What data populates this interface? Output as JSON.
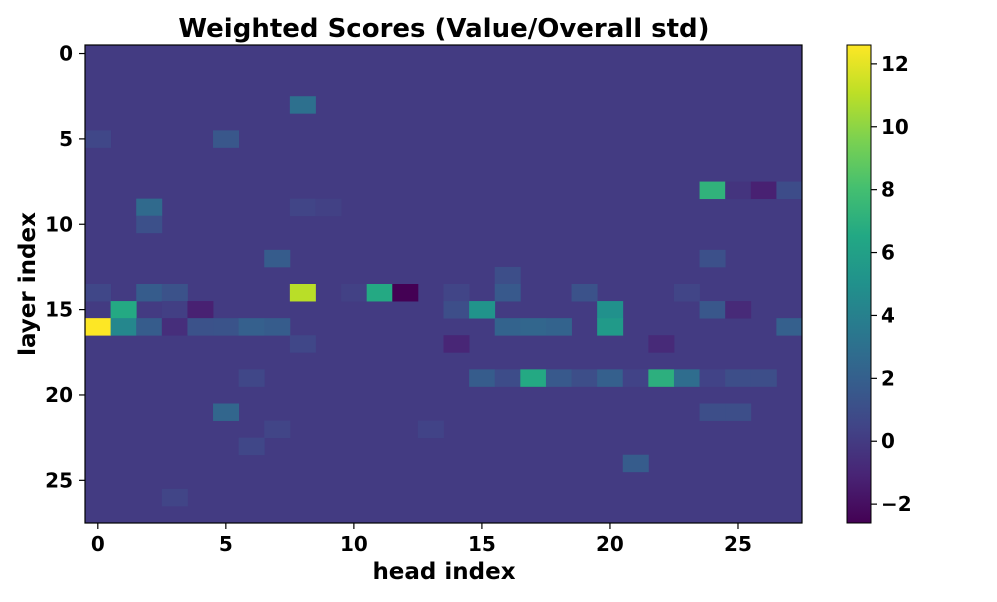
{
  "chart_data": {
    "type": "heatmap",
    "title": "Weighted Scores (Value/Overall std)",
    "xlabel": "head index",
    "ylabel": "layer index",
    "rows": 28,
    "cols": 28,
    "x_ticks": [
      0,
      5,
      10,
      15,
      20,
      25
    ],
    "y_ticks": [
      0,
      5,
      10,
      15,
      20,
      25
    ],
    "colorbar": {
      "vmin": -2.6,
      "vmax": 12.6,
      "ticks": [
        -2,
        0,
        2,
        4,
        6,
        8,
        10,
        12
      ],
      "tick_labels": [
        "−2",
        "0",
        "2",
        "4",
        "6",
        "8",
        "10",
        "12"
      ],
      "colormap": "viridis"
    },
    "background_value": 0.0,
    "cells": [
      {
        "layer": 3,
        "head": 8,
        "value": 3.0
      },
      {
        "layer": 5,
        "head": 0,
        "value": 0.6
      },
      {
        "layer": 5,
        "head": 5,
        "value": 1.5
      },
      {
        "layer": 8,
        "head": 24,
        "value": 7.2
      },
      {
        "layer": 8,
        "head": 25,
        "value": -0.3
      },
      {
        "layer": 8,
        "head": 26,
        "value": -1.2
      },
      {
        "layer": 8,
        "head": 27,
        "value": 0.9
      },
      {
        "layer": 9,
        "head": 2,
        "value": 2.6
      },
      {
        "layer": 9,
        "head": 8,
        "value": 0.5
      },
      {
        "layer": 9,
        "head": 9,
        "value": 0.3
      },
      {
        "layer": 10,
        "head": 2,
        "value": 1.1
      },
      {
        "layer": 12,
        "head": 7,
        "value": 1.8
      },
      {
        "layer": 12,
        "head": 24,
        "value": 1.1
      },
      {
        "layer": 13,
        "head": 16,
        "value": 1.0
      },
      {
        "layer": 14,
        "head": 0,
        "value": 0.6
      },
      {
        "layer": 14,
        "head": 2,
        "value": 1.8
      },
      {
        "layer": 14,
        "head": 3,
        "value": 1.2
      },
      {
        "layer": 14,
        "head": 8,
        "value": 11.0
      },
      {
        "layer": 14,
        "head": 10,
        "value": 0.3
      },
      {
        "layer": 14,
        "head": 11,
        "value": 6.6
      },
      {
        "layer": 14,
        "head": 12,
        "value": -2.6
      },
      {
        "layer": 14,
        "head": 14,
        "value": 0.5
      },
      {
        "layer": 14,
        "head": 16,
        "value": 1.6
      },
      {
        "layer": 14,
        "head": 19,
        "value": 1.2
      },
      {
        "layer": 14,
        "head": 23,
        "value": 0.5
      },
      {
        "layer": 15,
        "head": 1,
        "value": 6.6
      },
      {
        "layer": 15,
        "head": 3,
        "value": 0.2
      },
      {
        "layer": 15,
        "head": 4,
        "value": -1.2
      },
      {
        "layer": 15,
        "head": 14,
        "value": 1.0
      },
      {
        "layer": 15,
        "head": 15,
        "value": 5.2
      },
      {
        "layer": 15,
        "head": 20,
        "value": 5.0
      },
      {
        "layer": 15,
        "head": 24,
        "value": 1.5
      },
      {
        "layer": 15,
        "head": 25,
        "value": -0.8
      },
      {
        "layer": 16,
        "head": 0,
        "value": 12.6
      },
      {
        "layer": 16,
        "head": 1,
        "value": 4.4
      },
      {
        "layer": 16,
        "head": 2,
        "value": 1.8
      },
      {
        "layer": 16,
        "head": 3,
        "value": -0.6
      },
      {
        "layer": 16,
        "head": 4,
        "value": 1.2
      },
      {
        "layer": 16,
        "head": 5,
        "value": 1.3
      },
      {
        "layer": 16,
        "head": 6,
        "value": 2.0
      },
      {
        "layer": 16,
        "head": 7,
        "value": 1.8
      },
      {
        "layer": 16,
        "head": 16,
        "value": 2.2
      },
      {
        "layer": 16,
        "head": 17,
        "value": 2.4
      },
      {
        "layer": 16,
        "head": 18,
        "value": 2.2
      },
      {
        "layer": 16,
        "head": 20,
        "value": 5.6
      },
      {
        "layer": 16,
        "head": 27,
        "value": 2.0
      },
      {
        "layer": 17,
        "head": 8,
        "value": 0.6
      },
      {
        "layer": 17,
        "head": 14,
        "value": -1.0
      },
      {
        "layer": 17,
        "head": 22,
        "value": -0.8
      },
      {
        "layer": 19,
        "head": 6,
        "value": 0.6
      },
      {
        "layer": 19,
        "head": 15,
        "value": 1.8
      },
      {
        "layer": 19,
        "head": 16,
        "value": 0.9
      },
      {
        "layer": 19,
        "head": 17,
        "value": 6.6
      },
      {
        "layer": 19,
        "head": 18,
        "value": 1.6
      },
      {
        "layer": 19,
        "head": 19,
        "value": 1.0
      },
      {
        "layer": 19,
        "head": 20,
        "value": 2.0
      },
      {
        "layer": 19,
        "head": 21,
        "value": 0.4
      },
      {
        "layer": 19,
        "head": 22,
        "value": 7.0
      },
      {
        "layer": 19,
        "head": 23,
        "value": 2.8
      },
      {
        "layer": 19,
        "head": 24,
        "value": 0.4
      },
      {
        "layer": 19,
        "head": 25,
        "value": 1.0
      },
      {
        "layer": 19,
        "head": 26,
        "value": 1.0
      },
      {
        "layer": 21,
        "head": 5,
        "value": 2.4
      },
      {
        "layer": 21,
        "head": 24,
        "value": 1.0
      },
      {
        "layer": 21,
        "head": 25,
        "value": 1.0
      },
      {
        "layer": 22,
        "head": 7,
        "value": 0.5
      },
      {
        "layer": 22,
        "head": 13,
        "value": 0.4
      },
      {
        "layer": 23,
        "head": 6,
        "value": 0.6
      },
      {
        "layer": 24,
        "head": 21,
        "value": 1.8
      },
      {
        "layer": 26,
        "head": 3,
        "value": 0.5
      }
    ]
  }
}
